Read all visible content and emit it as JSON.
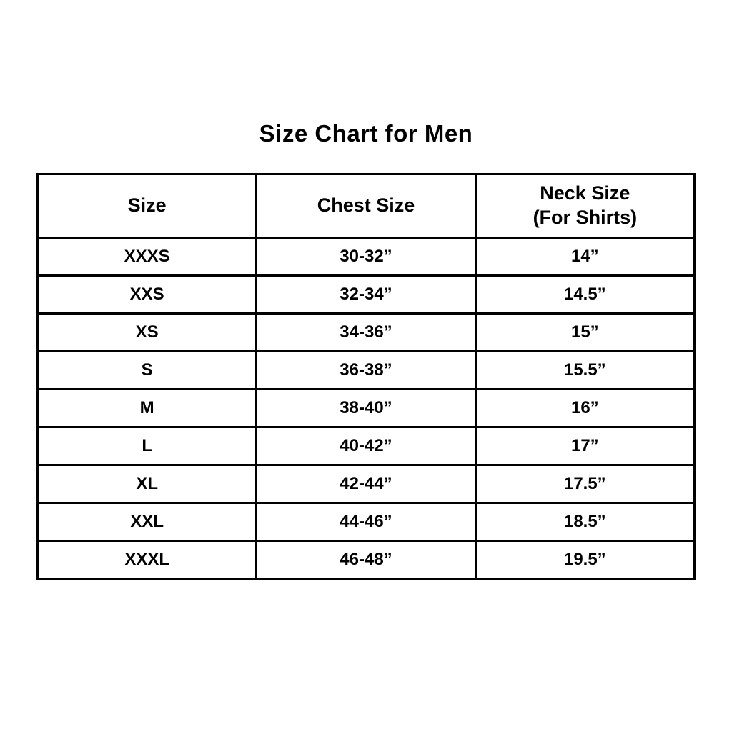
{
  "title": "Size Chart for Men",
  "table": {
    "headers": {
      "size": "Size",
      "chest": "Chest Size",
      "neck_line1": "Neck Size",
      "neck_line2": "(For Shirts)"
    },
    "rows": [
      {
        "size": "XXXS",
        "chest": "30-32”",
        "neck": "14”"
      },
      {
        "size": "XXS",
        "chest": "32-34”",
        "neck": "14.5”"
      },
      {
        "size": "XS",
        "chest": "34-36”",
        "neck": "15”"
      },
      {
        "size": "S",
        "chest": "36-38”",
        "neck": "15.5”"
      },
      {
        "size": "M",
        "chest": "38-40”",
        "neck": "16”"
      },
      {
        "size": "L",
        "chest": "40-42”",
        "neck": "17”"
      },
      {
        "size": "XL",
        "chest": "42-44”",
        "neck": "17.5”"
      },
      {
        "size": "XXL",
        "chest": "44-46”",
        "neck": "18.5”"
      },
      {
        "size": "XXXL",
        "chest": "46-48”",
        "neck": "19.5”"
      }
    ]
  }
}
